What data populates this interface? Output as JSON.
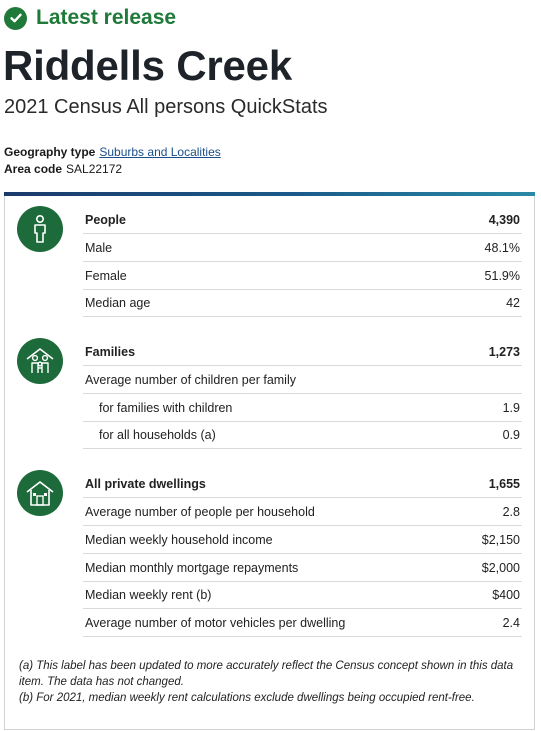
{
  "release": {
    "label": "Latest release",
    "color": "#1f7a3a",
    "icon": "check-circle-icon"
  },
  "title": "Riddells Creek",
  "subtitle": "2021 Census All persons QuickStats",
  "geography": {
    "type_label": "Geography type",
    "type_value": "Suburbs and Localities",
    "code_label": "Area code",
    "code_value": "SAL22172"
  },
  "sections": {
    "people": {
      "icon": "person-icon",
      "heading": {
        "label": "People",
        "value": "4,390"
      },
      "rows": [
        {
          "label": "Male",
          "value": "48.1%"
        },
        {
          "label": "Female",
          "value": "51.9%"
        },
        {
          "label": "Median age",
          "value": "42"
        }
      ]
    },
    "families": {
      "icon": "family-icon",
      "heading": {
        "label": "Families",
        "value": "1,273"
      },
      "rows": [
        {
          "label": "Average number of children per family",
          "value": ""
        },
        {
          "label": "for families with children",
          "value": "1.9"
        },
        {
          "label": "for all households (a)",
          "value": "0.9"
        }
      ]
    },
    "dwellings": {
      "icon": "house-icon",
      "heading": {
        "label": "All private dwellings",
        "value": "1,655"
      },
      "rows": [
        {
          "label": "Average number of people per household",
          "value": "2.8"
        },
        {
          "label": "Median weekly household income",
          "value": "$2,150"
        },
        {
          "label": "Median monthly mortgage repayments",
          "value": "$2,000"
        },
        {
          "label": "Median weekly rent (b)",
          "value": "$400"
        },
        {
          "label": "Average number of motor vehicles per dwelling",
          "value": "2.4"
        }
      ]
    }
  },
  "notes": [
    "(a) This label has been updated to more accurately reflect the Census concept shown in this data item. The data has not changed.",
    "(b) For 2021, median weekly rent calculations exclude dwellings being occupied rent-free."
  ],
  "colors": {
    "accent_green": "#1d6b3a",
    "link": "#1a4f8a"
  }
}
